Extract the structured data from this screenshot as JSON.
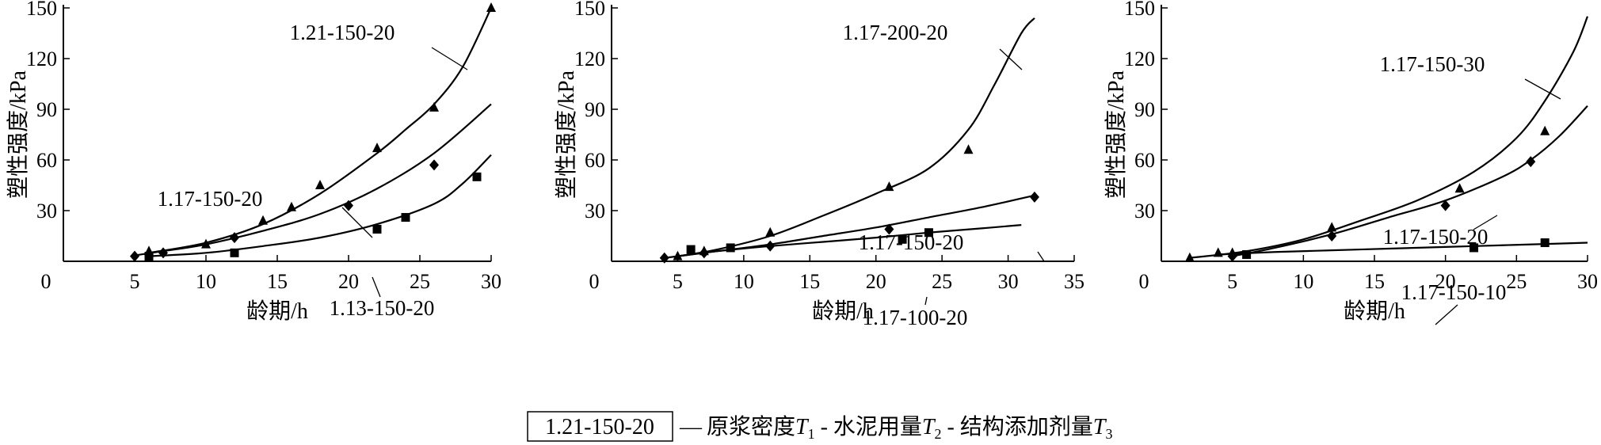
{
  "chart_data": [
    {
      "type": "line",
      "xlabel": "龄期/h",
      "ylabel": "塑性强度/kPa",
      "xlim": [
        0,
        30
      ],
      "ylim": [
        0,
        150
      ],
      "xticks": [
        0,
        5,
        10,
        15,
        20,
        25,
        30
      ],
      "yticks": [
        30,
        60,
        90,
        120,
        150
      ],
      "series": [
        {
          "name": "1.21-150-20",
          "marker": "triangle",
          "curve": [
            [
              6,
              5
            ],
            [
              10,
              11
            ],
            [
              14,
              22
            ],
            [
              18,
              40
            ],
            [
              22,
              64
            ],
            [
              24,
              78
            ],
            [
              26,
              93
            ],
            [
              28,
              115
            ],
            [
              30,
              150
            ]
          ],
          "points": [
            [
              6,
              6
            ],
            [
              10,
              10
            ],
            [
              14,
              24
            ],
            [
              16,
              32
            ],
            [
              18,
              45
            ],
            [
              22,
              67
            ],
            [
              26,
              91
            ],
            [
              30,
              150
            ]
          ]
        },
        {
          "name": "1.17-150-20",
          "marker": "diamond",
          "curve": [
            [
              5,
              3.5
            ],
            [
              7,
              6
            ],
            [
              10,
              10
            ],
            [
              14,
              18
            ],
            [
              18,
              28
            ],
            [
              22,
              43
            ],
            [
              26,
              64
            ],
            [
              30,
              93
            ]
          ],
          "points": [
            [
              5,
              3
            ],
            [
              7,
              5
            ],
            [
              12,
              14
            ],
            [
              20,
              33
            ],
            [
              26,
              57
            ]
          ]
        },
        {
          "name": "1.13-150-20",
          "marker": "square",
          "curve": [
            [
              6,
              3
            ],
            [
              10,
              5
            ],
            [
              14,
              9
            ],
            [
              18,
              14
            ],
            [
              22,
              22
            ],
            [
              26,
              34
            ],
            [
              28,
              46
            ],
            [
              30,
              63
            ]
          ],
          "points": [
            [
              6,
              3
            ],
            [
              12,
              5
            ],
            [
              22,
              19
            ],
            [
              24,
              26
            ],
            [
              29,
              50
            ]
          ]
        }
      ]
    },
    {
      "type": "line",
      "xlabel": "龄期/h",
      "ylabel": "塑性强度/kPa",
      "xlim": [
        0,
        35
      ],
      "ylim": [
        0,
        150
      ],
      "xticks": [
        0,
        5,
        10,
        15,
        20,
        25,
        30,
        35
      ],
      "yticks": [
        30,
        60,
        90,
        120,
        150
      ],
      "series": [
        {
          "name": "1.17-200-20",
          "marker": "triangle",
          "curve": [
            [
              5,
              3
            ],
            [
              8,
              7
            ],
            [
              12,
              15
            ],
            [
              16,
              27
            ],
            [
              20,
              40
            ],
            [
              24,
              55
            ],
            [
              27,
              78
            ],
            [
              29,
              105
            ],
            [
              31,
              135
            ],
            [
              32,
              144
            ]
          ],
          "points": [
            [
              5,
              3
            ],
            [
              7,
              6
            ],
            [
              12,
              17
            ],
            [
              21,
              44
            ],
            [
              27,
              66
            ]
          ]
        },
        {
          "name": "1.17-150-20",
          "marker": "diamond",
          "curve": [
            [
              4,
              2
            ],
            [
              8,
              6
            ],
            [
              12,
              10
            ],
            [
              16,
              15
            ],
            [
              20,
              20
            ],
            [
              24,
              26
            ],
            [
              28,
              32
            ],
            [
              32,
              39
            ]
          ],
          "points": [
            [
              4,
              2
            ],
            [
              7,
              5
            ],
            [
              12,
              9
            ],
            [
              21,
              19
            ],
            [
              32,
              38
            ]
          ]
        },
        {
          "name": "1.17-100-20",
          "marker": "square",
          "curve": [
            [
              5,
              3
            ],
            [
              8,
              6
            ],
            [
              12,
              9
            ],
            [
              16,
              11.5
            ],
            [
              20,
              14
            ],
            [
              24,
              17
            ],
            [
              28,
              19.5
            ],
            [
              31,
              21.5
            ]
          ],
          "points": [
            [
              6,
              7
            ],
            [
              9,
              8
            ],
            [
              22,
              13
            ],
            [
              24,
              17
            ]
          ]
        }
      ]
    },
    {
      "type": "line",
      "xlabel": "龄期/h",
      "ylabel": "塑性强度/kPa",
      "xlim": [
        0,
        30
      ],
      "ylim": [
        0,
        150
      ],
      "xticks": [
        0,
        5,
        10,
        15,
        20,
        25,
        30
      ],
      "yticks": [
        30,
        60,
        90,
        120,
        150
      ],
      "series": [
        {
          "name": "1.17-150-30",
          "marker": "triangle",
          "curve": [
            [
              2,
              2
            ],
            [
              6,
              6
            ],
            [
              10,
              13
            ],
            [
              14,
              24
            ],
            [
              18,
              36
            ],
            [
              22,
              53
            ],
            [
              25,
              73
            ],
            [
              27,
              95
            ],
            [
              29,
              124
            ],
            [
              30,
              145
            ]
          ],
          "points": [
            [
              2,
              2
            ],
            [
              4,
              5
            ],
            [
              5,
              5
            ],
            [
              12,
              20
            ],
            [
              21,
              43
            ],
            [
              27,
              77
            ]
          ]
        },
        {
          "name": "1.17-150-20",
          "marker": "diamond",
          "curve": [
            [
              5,
              3
            ],
            [
              8,
              8
            ],
            [
              12,
              16
            ],
            [
              16,
              26
            ],
            [
              20,
              36
            ],
            [
              24,
              50
            ],
            [
              26,
              60
            ],
            [
              28,
              74
            ],
            [
              30,
              92
            ]
          ],
          "points": [
            [
              5,
              3
            ],
            [
              12,
              15
            ],
            [
              20,
              33
            ],
            [
              26,
              59
            ]
          ]
        },
        {
          "name": "1.17-150-10",
          "marker": "square",
          "curve": [
            [
              4,
              4
            ],
            [
              8,
              5.5
            ],
            [
              12,
              6.5
            ],
            [
              16,
              7.5
            ],
            [
              20,
              8.5
            ],
            [
              24,
              9.5
            ],
            [
              28,
              10.5
            ],
            [
              30,
              11
            ]
          ],
          "points": [
            [
              6,
              4
            ],
            [
              22,
              8
            ],
            [
              27,
              11
            ]
          ]
        }
      ]
    }
  ],
  "legend": {
    "key": "1.21-150-20",
    "dash": "—",
    "text1": "原浆密度",
    "t1": "T",
    "s1": "1",
    "sep1": " - ",
    "text2": "水泥用量",
    "t2": "T",
    "s2": "2",
    "sep2": " - ",
    "text3": "结构添加剂量",
    "t3": "T",
    "s3": "3"
  }
}
